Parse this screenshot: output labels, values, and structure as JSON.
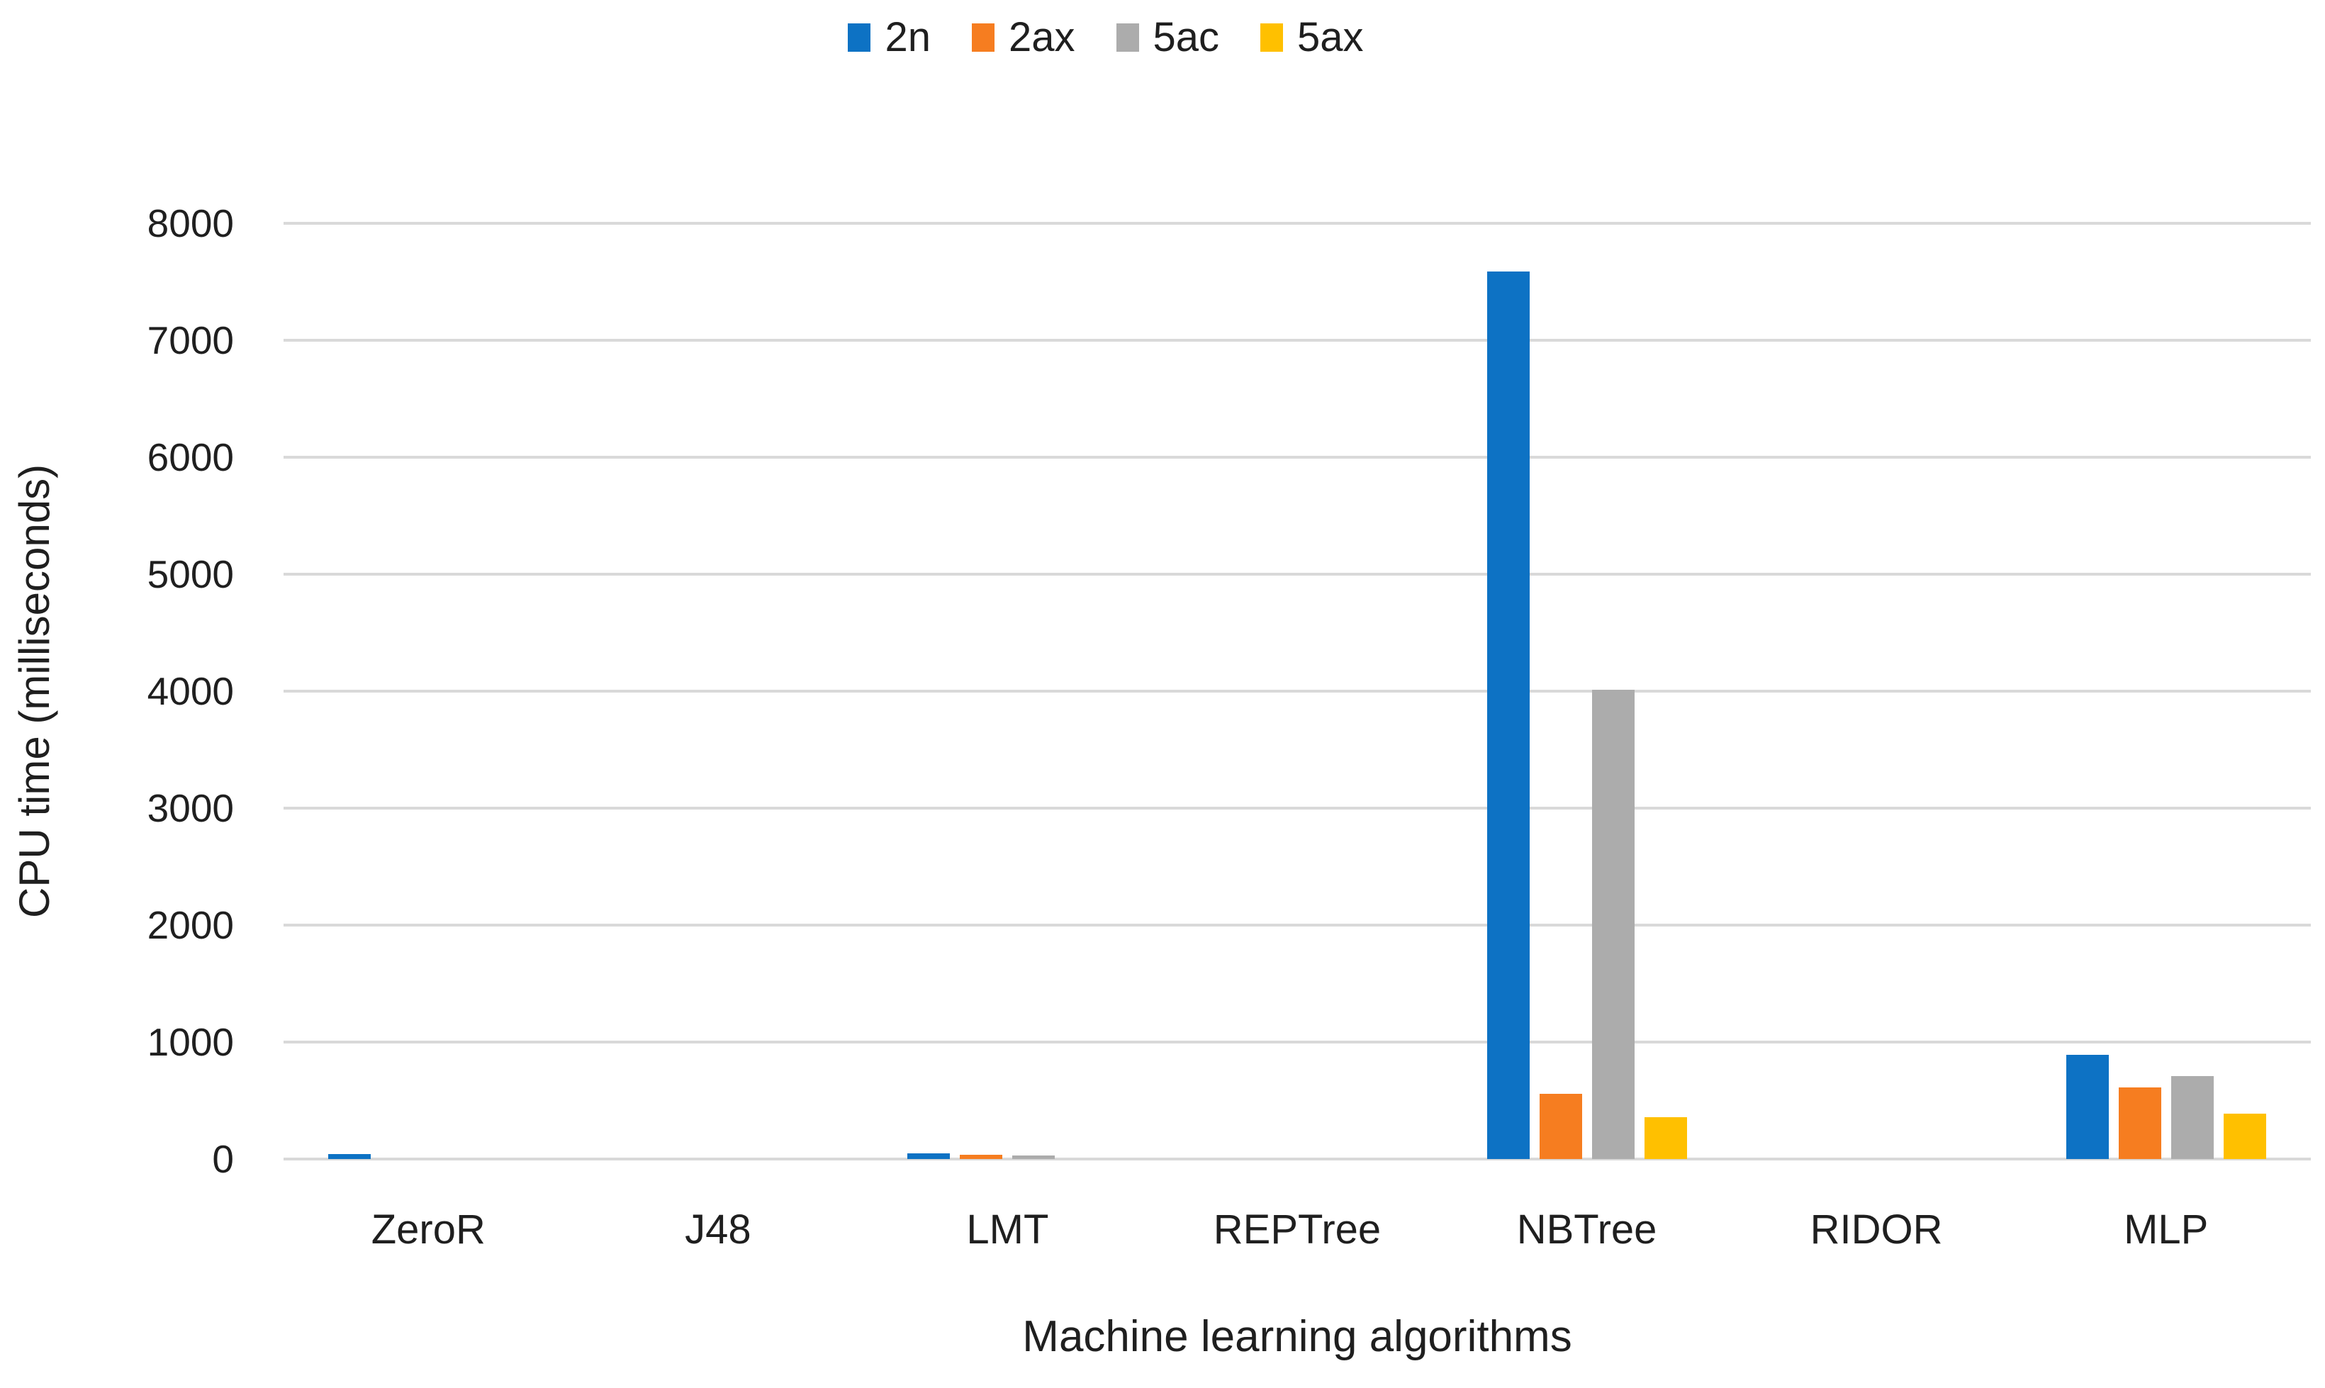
{
  "chart_data": {
    "type": "bar",
    "title": "",
    "xlabel": "Machine learning algorithms",
    "ylabel": "CPU time (milliseconds)",
    "categories": [
      "ZeroR",
      "J48",
      "LMT",
      "REPTree",
      "NBTree",
      "RIDOR",
      "MLP"
    ],
    "series": [
      {
        "name": "2n",
        "color": "#0D72C4",
        "values": [
          40,
          0,
          50,
          0,
          7590,
          0,
          890
        ]
      },
      {
        "name": "2ax",
        "color": "#F67D20",
        "values": [
          0,
          0,
          35,
          0,
          560,
          0,
          615
        ]
      },
      {
        "name": "5ac",
        "color": "#ACACAC",
        "values": [
          0,
          0,
          30,
          0,
          4010,
          0,
          710
        ]
      },
      {
        "name": "5ax",
        "color": "#FFC000",
        "values": [
          0,
          0,
          0,
          0,
          360,
          0,
          390
        ]
      }
    ],
    "ylim": [
      0,
      8000
    ],
    "yticks": [
      0,
      1000,
      2000,
      3000,
      4000,
      5000,
      6000,
      7000,
      8000
    ],
    "grid": true,
    "gridline_color": "#D9D9D9",
    "legend_position": "top",
    "background_color": "#FFFFFF",
    "text_color": "#1F1F1F"
  }
}
